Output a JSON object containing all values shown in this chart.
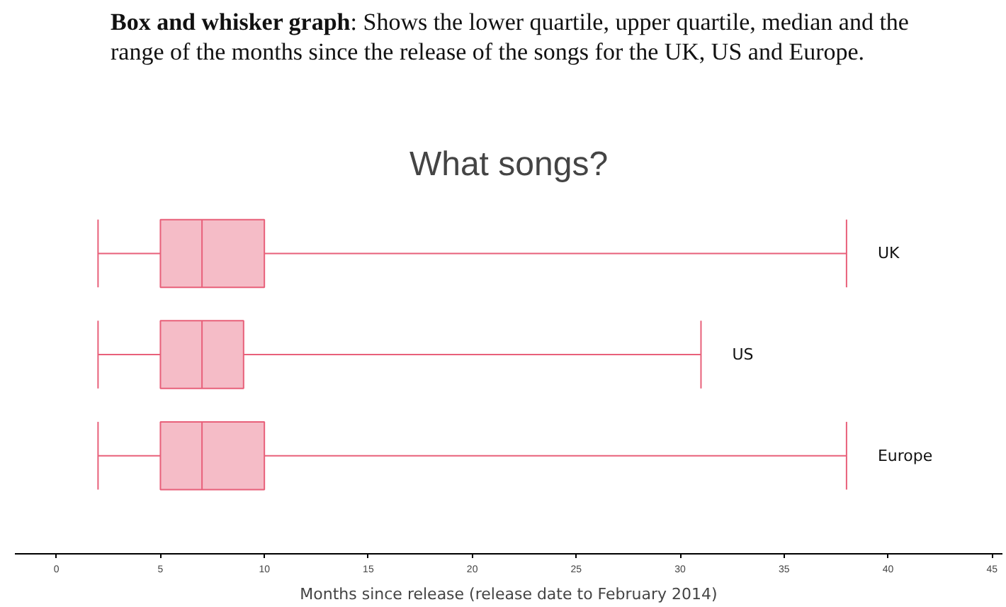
{
  "chart_data": {
    "type": "box",
    "orientation": "horizontal",
    "title": "What songs?",
    "annotations": [
      "Box and whisker graph",
      ": Shows the lower quartile, upper quartile, median and the range of the months since the release of the songs for the UK, US and Europe."
    ],
    "xlabel": "Months since release (release date to February 2014)",
    "categories": [
      "UK",
      "US",
      "Europe"
    ],
    "color": "#e8607a",
    "boxes": [
      {
        "low": 2,
        "q1": 5,
        "median": 7,
        "q3": 10,
        "high": 38
      },
      {
        "low": 2,
        "q1": 5,
        "median": 7,
        "q3": 9,
        "high": 31
      },
      {
        "low": 2,
        "q1": 5,
        "median": 7,
        "q3": 10,
        "high": 38
      }
    ],
    "xlim": [
      -2,
      45.5
    ],
    "xticks": [
      0,
      5,
      10,
      15,
      20,
      25,
      30,
      35,
      40,
      45
    ],
    "grid": false
  }
}
